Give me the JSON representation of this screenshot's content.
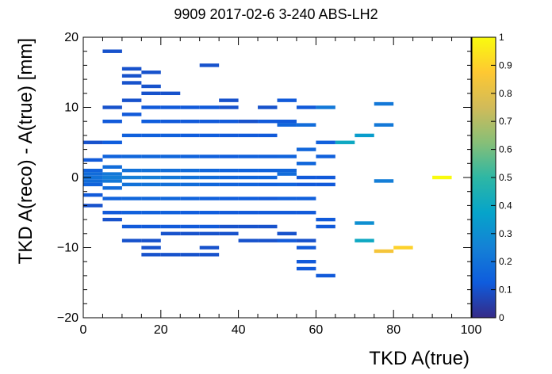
{
  "chart_data": {
    "type": "heatmap",
    "title": "9909 2017-02-6 3-240 ABS-LH2",
    "xlabel": "TKD A(true)",
    "ylabel": "TKD A(reco) - A(true) [mm]",
    "xlim": [
      0,
      100
    ],
    "ylim": [
      -20,
      20
    ],
    "zlim": [
      0,
      1
    ],
    "x_ticks": [
      0,
      20,
      40,
      60,
      80,
      100
    ],
    "y_ticks": [
      -20,
      -10,
      0,
      10,
      20
    ],
    "z_ticks": [
      0,
      0.1,
      0.2,
      0.3,
      0.4,
      0.5,
      0.6,
      0.7,
      0.8,
      0.9,
      1
    ],
    "grid": false,
    "bin_width_x": 5,
    "bin_width_y": 0.5,
    "colormap": [
      "#352a87",
      "#0f5cdd",
      "#1481d6",
      "#06a4ca",
      "#2eb7a4",
      "#87bf77",
      "#d1bb59",
      "#fec832",
      "#f9fb0e"
    ],
    "cells": [
      [
        0,
        5,
        0.1
      ],
      [
        0,
        2.5,
        0.12
      ],
      [
        0,
        1,
        0.15
      ],
      [
        0,
        0.5,
        0.18
      ],
      [
        0,
        0,
        0.2
      ],
      [
        0,
        -0.5,
        0.18
      ],
      [
        0,
        -1,
        0.15
      ],
      [
        0,
        -2.5,
        0.12
      ],
      [
        0,
        -4,
        0.1
      ],
      [
        5,
        18,
        0.1
      ],
      [
        5,
        10,
        0.1
      ],
      [
        5,
        8,
        0.12
      ],
      [
        5,
        5,
        0.13
      ],
      [
        5,
        3,
        0.15
      ],
      [
        5,
        1.5,
        0.18
      ],
      [
        5,
        0.5,
        0.22
      ],
      [
        5,
        0,
        0.24
      ],
      [
        5,
        -0.5,
        0.22
      ],
      [
        5,
        -1.5,
        0.18
      ],
      [
        5,
        -3,
        0.15
      ],
      [
        5,
        -5,
        0.12
      ],
      [
        5,
        -6,
        0.1
      ],
      [
        10,
        15.5,
        0.1
      ],
      [
        10,
        14.5,
        0.1
      ],
      [
        10,
        13.5,
        0.1
      ],
      [
        10,
        11,
        0.1
      ],
      [
        10,
        9,
        0.12
      ],
      [
        10,
        6,
        0.14
      ],
      [
        10,
        3,
        0.16
      ],
      [
        10,
        1,
        0.2
      ],
      [
        10,
        0,
        0.24
      ],
      [
        10,
        -1,
        0.2
      ],
      [
        10,
        -3,
        0.16
      ],
      [
        10,
        -5,
        0.14
      ],
      [
        10,
        -7,
        0.12
      ],
      [
        10,
        -9,
        0.1
      ],
      [
        15,
        15,
        0.1
      ],
      [
        15,
        13,
        0.1
      ],
      [
        15,
        12,
        0.1
      ],
      [
        15,
        10,
        0.12
      ],
      [
        15,
        8,
        0.13
      ],
      [
        15,
        6,
        0.14
      ],
      [
        15,
        3,
        0.16
      ],
      [
        15,
        1,
        0.2
      ],
      [
        15,
        0,
        0.24
      ],
      [
        15,
        -1,
        0.2
      ],
      [
        15,
        -3,
        0.16
      ],
      [
        15,
        -5,
        0.14
      ],
      [
        15,
        -7,
        0.12
      ],
      [
        15,
        -9,
        0.1
      ],
      [
        15,
        -10,
        0.1
      ],
      [
        15,
        -11,
        0.1
      ],
      [
        20,
        12,
        0.1
      ],
      [
        20,
        10,
        0.12
      ],
      [
        20,
        8,
        0.12
      ],
      [
        20,
        6,
        0.14
      ],
      [
        20,
        3,
        0.16
      ],
      [
        20,
        1,
        0.19
      ],
      [
        20,
        0,
        0.22
      ],
      [
        20,
        -1,
        0.19
      ],
      [
        20,
        -3,
        0.16
      ],
      [
        20,
        -5,
        0.14
      ],
      [
        20,
        -7,
        0.12
      ],
      [
        20,
        -8,
        0.1
      ],
      [
        20,
        -11,
        0.1
      ],
      [
        25,
        10,
        0.12
      ],
      [
        25,
        8,
        0.12
      ],
      [
        25,
        6,
        0.13
      ],
      [
        25,
        3,
        0.15
      ],
      [
        25,
        1,
        0.18
      ],
      [
        25,
        0,
        0.2
      ],
      [
        25,
        -1,
        0.18
      ],
      [
        25,
        -3,
        0.15
      ],
      [
        25,
        -5,
        0.13
      ],
      [
        25,
        -7,
        0.12
      ],
      [
        25,
        -8,
        0.1
      ],
      [
        25,
        -11,
        0.1
      ],
      [
        30,
        16,
        0.1
      ],
      [
        30,
        10,
        0.12
      ],
      [
        30,
        8,
        0.12
      ],
      [
        30,
        6,
        0.13
      ],
      [
        30,
        3,
        0.14
      ],
      [
        30,
        1,
        0.16
      ],
      [
        30,
        0,
        0.18
      ],
      [
        30,
        -1,
        0.16
      ],
      [
        30,
        -3,
        0.14
      ],
      [
        30,
        -5,
        0.13
      ],
      [
        30,
        -7,
        0.12
      ],
      [
        30,
        -8,
        0.1
      ],
      [
        30,
        -10,
        0.1
      ],
      [
        30,
        -11,
        0.1
      ],
      [
        35,
        11,
        0.1
      ],
      [
        35,
        10,
        0.1
      ],
      [
        35,
        8,
        0.12
      ],
      [
        35,
        6,
        0.12
      ],
      [
        35,
        3,
        0.13
      ],
      [
        35,
        1,
        0.15
      ],
      [
        35,
        0,
        0.16
      ],
      [
        35,
        -1,
        0.15
      ],
      [
        35,
        -3,
        0.13
      ],
      [
        35,
        -5,
        0.12
      ],
      [
        35,
        -7,
        0.1
      ],
      [
        35,
        -8,
        0.1
      ],
      [
        40,
        8,
        0.1
      ],
      [
        40,
        6,
        0.12
      ],
      [
        40,
        3,
        0.14
      ],
      [
        40,
        1,
        0.15
      ],
      [
        40,
        0,
        0.16
      ],
      [
        40,
        -1,
        0.15
      ],
      [
        40,
        -3,
        0.13
      ],
      [
        40,
        -5,
        0.12
      ],
      [
        40,
        -7,
        0.1
      ],
      [
        40,
        -9,
        0.1
      ],
      [
        45,
        10,
        0.1
      ],
      [
        45,
        8,
        0.12
      ],
      [
        45,
        6,
        0.12
      ],
      [
        45,
        3,
        0.14
      ],
      [
        45,
        1,
        0.15
      ],
      [
        45,
        0,
        0.16
      ],
      [
        45,
        -1,
        0.14
      ],
      [
        45,
        -3,
        0.12
      ],
      [
        45,
        -5,
        0.12
      ],
      [
        45,
        -7,
        0.1
      ],
      [
        45,
        -9,
        0.1
      ],
      [
        50,
        11,
        0.12
      ],
      [
        50,
        8,
        0.12
      ],
      [
        50,
        7.5,
        0.16
      ],
      [
        50,
        3,
        0.15
      ],
      [
        50,
        1,
        0.16
      ],
      [
        50,
        0.5,
        0.18
      ],
      [
        50,
        -1,
        0.15
      ],
      [
        50,
        -3,
        0.14
      ],
      [
        50,
        -5,
        0.12
      ],
      [
        50,
        -8,
        0.1
      ],
      [
        50,
        -9,
        0.12
      ],
      [
        55,
        10,
        0.12
      ],
      [
        55,
        7.5,
        0.18
      ],
      [
        55,
        4,
        0.16
      ],
      [
        55,
        2,
        0.16
      ],
      [
        55,
        0,
        0.12
      ],
      [
        55,
        -1,
        0.12
      ],
      [
        55,
        -3,
        0.14
      ],
      [
        55,
        -5,
        0.12
      ],
      [
        55,
        -9,
        0.1
      ],
      [
        55,
        -10,
        0.12
      ],
      [
        55,
        -12,
        0.12
      ],
      [
        55,
        -13,
        0.12
      ],
      [
        60,
        10,
        0.22
      ],
      [
        60,
        5,
        0.14
      ],
      [
        60,
        3,
        0.14
      ],
      [
        60,
        0,
        0.12
      ],
      [
        60,
        -1,
        0.12
      ],
      [
        60,
        -6,
        0.12
      ],
      [
        60,
        -7,
        0.12
      ],
      [
        60,
        -14,
        0.12
      ],
      [
        65,
        5,
        0.4
      ],
      [
        70,
        6,
        0.35
      ],
      [
        70,
        -9,
        0.4
      ],
      [
        70,
        -6.5,
        0.3
      ],
      [
        75,
        10.5,
        0.22
      ],
      [
        75,
        7.5,
        0.22
      ],
      [
        75,
        -0.5,
        0.24
      ],
      [
        75,
        -10.5,
        0.85
      ],
      [
        80,
        -10,
        0.9
      ],
      [
        90,
        0,
        1
      ]
    ]
  }
}
